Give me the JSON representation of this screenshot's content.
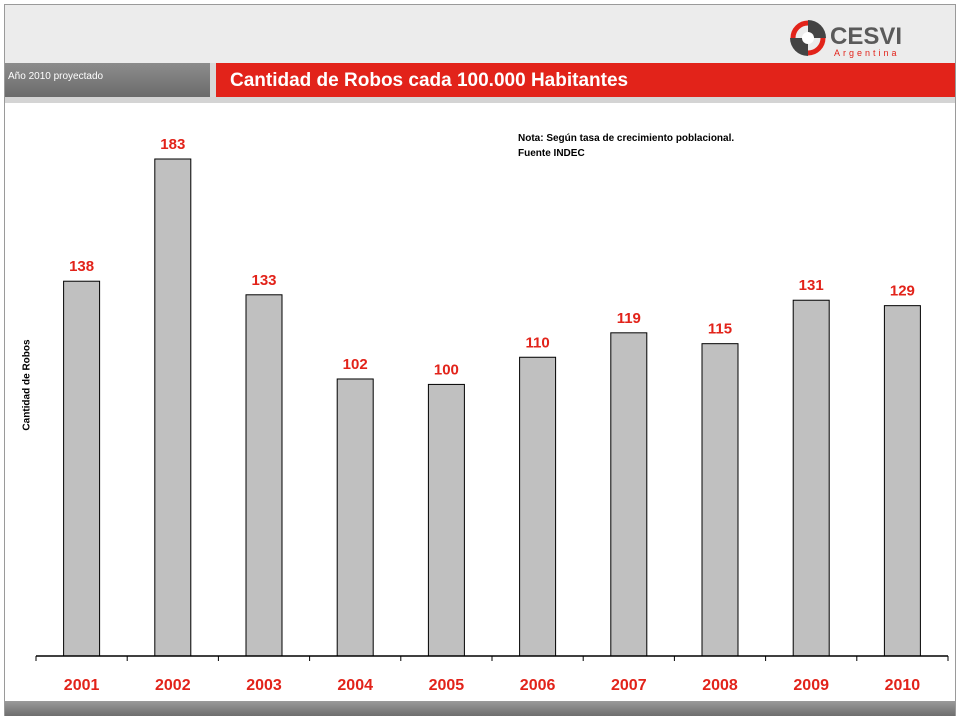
{
  "header": {
    "subtitle": "Año 2010 proyectado",
    "title": "Cantidad de Robos cada 100.000 Habitantes",
    "logo_text": "CESVI",
    "logo_subtext": "Argentina"
  },
  "note": {
    "line1": "Nota: Según tasa de crecimiento poblacional.",
    "line2": "Fuente INDEC"
  },
  "colors": {
    "accent": "#e2231a",
    "bar_fill": "#c0c0c0",
    "bar_stroke": "#000000"
  },
  "chart_data": {
    "type": "bar",
    "title": "Cantidad de Robos cada 100.000 Habitantes",
    "xlabel": "",
    "ylabel": "Cantidad de Robos",
    "categories": [
      "2001",
      "2002",
      "2003",
      "2004",
      "2005",
      "2006",
      "2007",
      "2008",
      "2009",
      "2010"
    ],
    "values": [
      138,
      183,
      133,
      102,
      100,
      110,
      119,
      115,
      131,
      129
    ],
    "ylim": [
      0,
      200
    ],
    "grid": false,
    "data_labels": true
  }
}
